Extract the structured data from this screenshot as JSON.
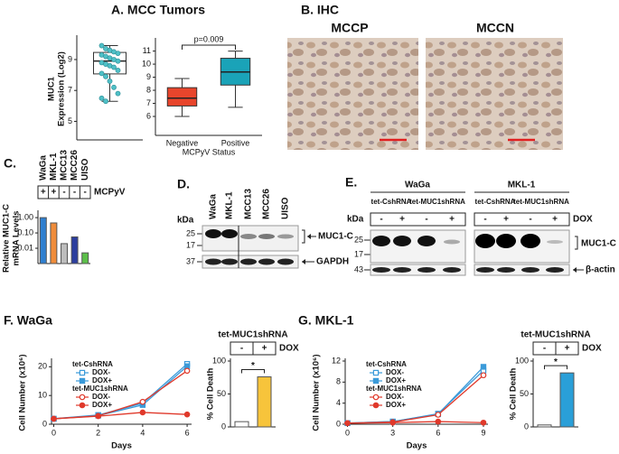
{
  "figure": {
    "panel_a_title": "A. MCC Tumors",
    "panel_b_title": "B. IHC",
    "ihc_labels": [
      "MCCP",
      "MCCN"
    ],
    "panel_c_label": "C.",
    "panel_d_label": "D.",
    "panel_e_label": "E.",
    "panel_f_title": "F. WaGa",
    "panel_g_title": "G. MKL-1",
    "blot_d": {
      "kda": "kDa",
      "lanes": [
        "WaGa",
        "MKL-1",
        "MCC13",
        "MCC26",
        "UISO"
      ],
      "markers": [
        "25",
        "17",
        "37"
      ],
      "bands": [
        "MUC1-C",
        "GAPDH"
      ]
    },
    "blot_e": {
      "kda": "kDa",
      "cells": [
        "WaGa",
        "MKL-1"
      ],
      "groups": [
        "tet-CshRNA",
        "tet-MUC1shRNA"
      ],
      "dox_signs": [
        "-",
        "+",
        "-",
        "+"
      ],
      "dox": "DOX",
      "markers": [
        "25",
        "17",
        "43"
      ],
      "bands": [
        "MUC1-C",
        "β-actin"
      ]
    }
  },
  "chart_data": [
    {
      "type": "box",
      "ylabel": [
        "MUC1",
        "Expression (Log2)"
      ],
      "ylim": [
        3.8,
        10.4
      ],
      "yticks": [
        5,
        7,
        9
      ],
      "boxes": [
        {
          "low": 6.3,
          "q1": 8.07,
          "median": 8.9,
          "q3": 9.46,
          "high": 9.9,
          "color": "#ffffff"
        }
      ],
      "points": [
        9.9,
        9.7,
        9.6,
        9.5,
        9.4,
        9.3,
        9.2,
        9.1,
        9.0,
        8.9,
        8.8,
        8.7,
        8.6,
        8.5,
        8.3,
        8.1,
        7.9,
        7.6,
        7.2,
        6.8,
        6.5,
        6.3
      ],
      "point_color": "#4fc0c7"
    },
    {
      "type": "box",
      "categories": [
        "Negative",
        "Positive"
      ],
      "xlabel": "MCPyV Status",
      "ylim": [
        4.55,
        11.8
      ],
      "yticks": [
        6,
        7,
        8,
        9,
        10,
        11
      ],
      "boxes": [
        {
          "low": 6.0,
          "q1": 6.8,
          "median": 7.4,
          "q3": 8.2,
          "high": 8.9,
          "color": "#e8452c"
        },
        {
          "low": 6.7,
          "q1": 8.4,
          "median": 9.4,
          "q3": 10.45,
          "high": 11.0,
          "color": "#1aa3b8"
        }
      ],
      "annotation": "p=0.009"
    },
    {
      "type": "bar",
      "categories": [
        "WaGa",
        "MKL-1",
        "MCC13",
        "MCC26",
        "UISO"
      ],
      "signs": [
        "+",
        "+",
        "-",
        "-",
        "-"
      ],
      "row_label": "MCPyV",
      "values": [
        1.0,
        0.45,
        0.02,
        0.055,
        0.005
      ],
      "colors": [
        "#2f7fd0",
        "#f08c3a",
        "#bdbdbd",
        "#2c3e9e",
        "#5cbf4a"
      ],
      "ylabel": [
        "Relative MUC1-C",
        "mRNA Levels"
      ],
      "log_scale": true,
      "ylim": [
        0.001,
        2
      ],
      "yticks": [
        {
          "value": 1,
          "label": "1.00"
        },
        {
          "value": 0.1,
          "label": "0.10"
        },
        0.01
      ]
    },
    {
      "type": "line",
      "xlabel": "Days",
      "ylabel": "Cell Number (x10⁶)",
      "xlim": [
        -0.1,
        6.2
      ],
      "xticks": [
        0,
        2,
        4,
        6
      ],
      "ylim": [
        0,
        22
      ],
      "yticks": [
        0,
        10,
        20
      ],
      "x": [
        0,
        2,
        4,
        6
      ],
      "groups": [
        {
          "name": "tet-CshRNA",
          "series": [
            {
              "name": "DOX-",
              "color": "#3a9ad9",
              "marker": "open-square",
              "values": [
                1.9,
                3.2,
                7.3,
                21.0
              ]
            },
            {
              "name": "DOX+",
              "color": "#3a9ad9",
              "marker": "filled-square",
              "values": [
                1.9,
                3.0,
                6.7,
                20.2
              ]
            }
          ]
        },
        {
          "name": "tet-MUC1shRNA",
          "series": [
            {
              "name": "DOX-",
              "color": "#e0392b",
              "marker": "open-circle",
              "values": [
                1.9,
                2.9,
                7.8,
                18.6
              ]
            },
            {
              "name": "DOX+",
              "color": "#e0392b",
              "marker": "filled-circle",
              "values": [
                1.9,
                2.8,
                4.1,
                3.4
              ]
            }
          ]
        }
      ]
    },
    {
      "type": "bar",
      "title": "tet-MUC1shRNA",
      "categories": [
        "-",
        "+"
      ],
      "signs": [
        "-",
        "+"
      ],
      "row_label": "DOX",
      "values": [
        8,
        76
      ],
      "colors": [
        "#ffffff",
        "#f7c43b"
      ],
      "ylabel": "% Cell Death",
      "ylim": [
        0,
        100
      ],
      "yticks": [
        0,
        50,
        100
      ],
      "annotation": "*"
    },
    {
      "type": "line",
      "xlabel": "Days",
      "ylabel": "Cell Number (x10⁶)",
      "xlim": [
        -0.15,
        9.3
      ],
      "xticks": [
        0,
        3,
        6,
        9
      ],
      "ylim": [
        0,
        12
      ],
      "yticks": [
        0,
        4,
        8,
        12
      ],
      "x": [
        0,
        3,
        6,
        9
      ],
      "groups": [
        {
          "name": "tet-CshRNA",
          "series": [
            {
              "name": "DOX-",
              "color": "#3a9ad9",
              "marker": "open-square",
              "values": [
                0.2,
                0.5,
                2.0,
                10.2
              ]
            },
            {
              "name": "DOX+",
              "color": "#3a9ad9",
              "marker": "filled-square",
              "values": [
                0.2,
                0.5,
                1.9,
                10.9
              ]
            }
          ]
        },
        {
          "name": "tet-MUC1shRNA",
          "series": [
            {
              "name": "DOX-",
              "color": "#e0392b",
              "marker": "open-circle",
              "values": [
                0.2,
                0.4,
                1.8,
                9.3
              ]
            },
            {
              "name": "DOX+",
              "color": "#e0392b",
              "marker": "filled-circle",
              "values": [
                0.2,
                0.3,
                0.5,
                0.3
              ]
            }
          ]
        }
      ]
    },
    {
      "type": "bar",
      "title": "tet-MUC1shRNA",
      "categories": [
        "-",
        "+"
      ],
      "signs": [
        "-",
        "+"
      ],
      "row_label": "DOX",
      "values": [
        3,
        82
      ],
      "colors": [
        "#ffffff",
        "#2a9fd8"
      ],
      "ylabel": "% Cell Death",
      "ylim": [
        0,
        100
      ],
      "yticks": [
        0,
        50,
        100
      ],
      "annotation": "*"
    }
  ]
}
